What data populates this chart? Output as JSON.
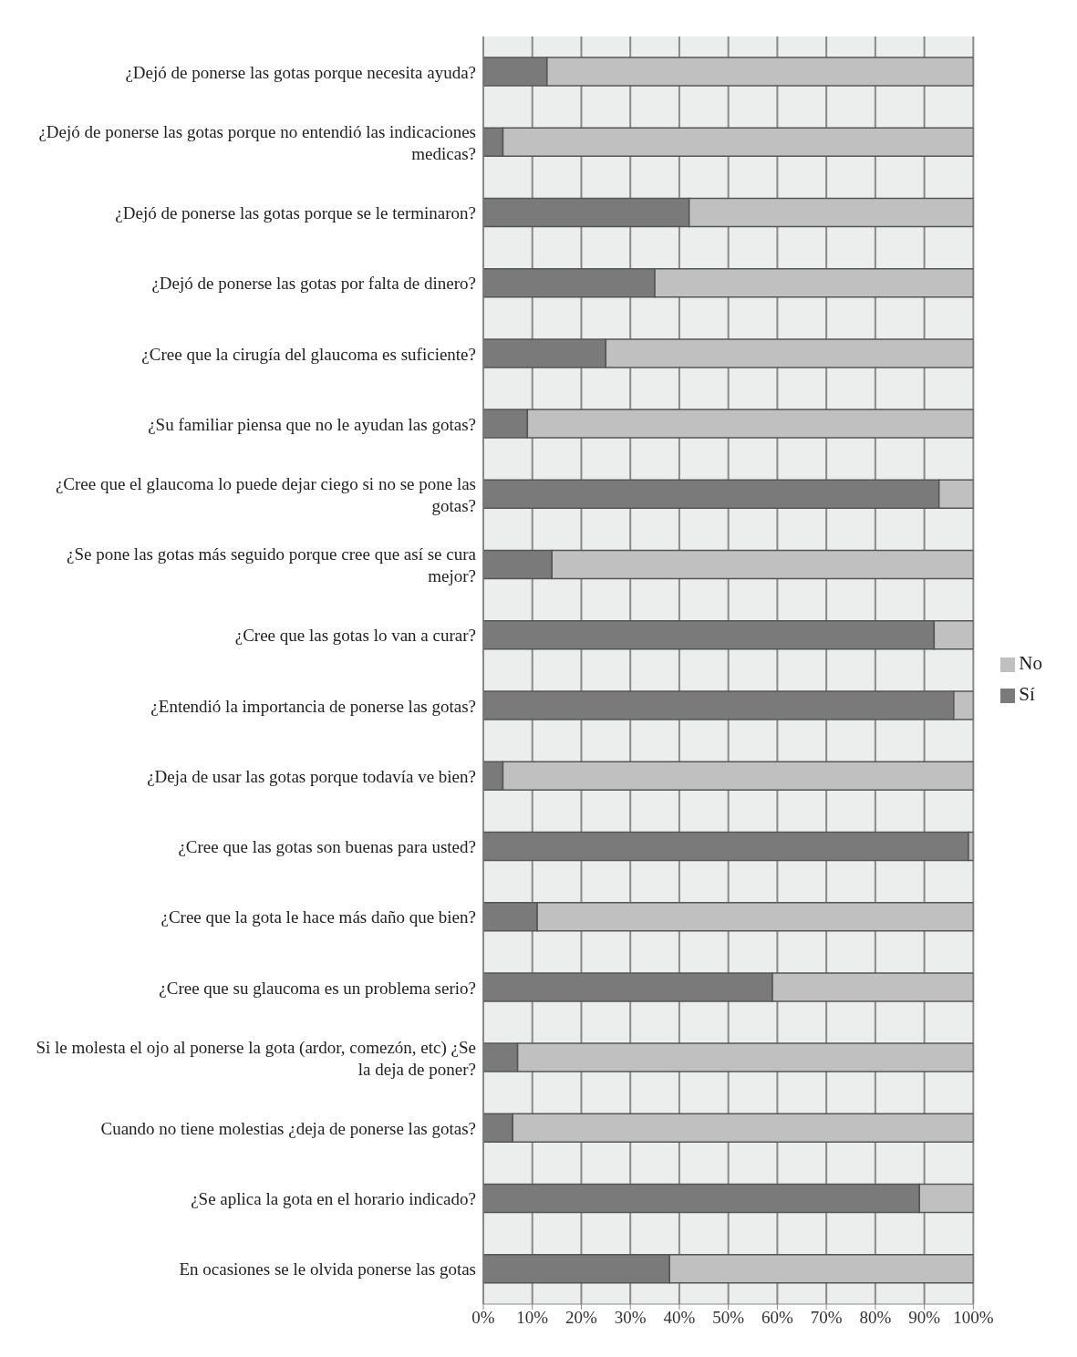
{
  "chart_data": {
    "type": "bar",
    "orientation": "horizontal",
    "stacked": true,
    "categories": [
      "¿Dejó de ponerse las gotas porque necesita ayuda?",
      "¿Dejó de ponerse las gotas porque no entendió las indicaciones medicas?",
      "¿Dejó de ponerse las gotas porque se le terminaron?",
      "¿Dejó de ponerse las gotas por falta de dinero?",
      "¿Cree que la cirugía del glaucoma es suficiente?",
      "¿Su familiar piensa que no le ayudan las gotas?",
      "¿Cree que el glaucoma lo puede dejar ciego si no se pone las gotas?",
      "¿Se pone las gotas más seguido porque cree que así se cura mejor?",
      "¿Cree que las gotas lo van a curar?",
      "¿Entendió la importancia de ponerse las gotas?",
      "¿Deja de usar las gotas porque todavía ve bien?",
      "¿Cree que las gotas son buenas para usted?",
      "¿Cree que la gota le hace más daño que bien?",
      "¿Cree que su glaucoma es un problema serio?",
      "Si le molesta el ojo al ponerse la gota (ardor, comezón, etc) ¿Se la deja de poner?",
      "Cuando no tiene molestias ¿deja de ponerse las gotas?",
      "¿Se aplica la gota en el horario indicado?",
      "En ocasiones se le olvida ponerse las gotas"
    ],
    "series": [
      {
        "name": "Sí",
        "color": "#7a7a7a",
        "values": [
          13,
          4,
          42,
          35,
          25,
          9,
          93,
          14,
          92,
          96,
          4,
          99,
          11,
          59,
          7,
          6,
          89,
          38
        ]
      },
      {
        "name": "No",
        "color": "#c0c0c0",
        "values": [
          87,
          96,
          58,
          65,
          75,
          91,
          7,
          86,
          8,
          4,
          96,
          1,
          89,
          41,
          93,
          94,
          11,
          62
        ]
      }
    ],
    "xlim": [
      0,
      100
    ],
    "xticks": [
      {
        "value": 0,
        "label": "0%"
      },
      {
        "value": 10,
        "label": "10%"
      },
      {
        "value": 20,
        "label": "20%"
      },
      {
        "value": 30,
        "label": "30%"
      },
      {
        "value": 40,
        "label": "40%"
      },
      {
        "value": 50,
        "label": "50%"
      },
      {
        "value": 60,
        "label": "60%"
      },
      {
        "value": 70,
        "label": "70%"
      },
      {
        "value": 80,
        "label": "80%"
      },
      {
        "value": 90,
        "label": "90%"
      },
      {
        "value": 100,
        "label": "100%"
      }
    ],
    "grid": "x",
    "legend": "right"
  }
}
